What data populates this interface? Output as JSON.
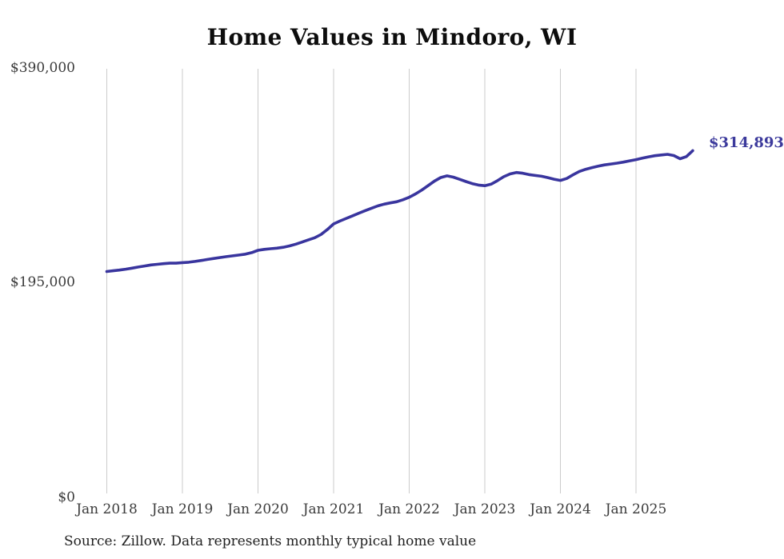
{
  "chart_data": {
    "type": "line",
    "title": "Home Values in Mindoro, WI",
    "source_note": "Source: Zillow. Data represents monthly typical home value",
    "end_label": "$314,893",
    "end_value": 314893,
    "x_tick_labels": [
      "Jan 2018",
      "Jan 2019",
      "Jan 2020",
      "Jan 2021",
      "Jan 2022",
      "Jan 2023",
      "Jan 2024",
      "Jan 2025"
    ],
    "y_tick_labels": [
      "$390,000",
      "$195,000",
      "$0"
    ],
    "y_tick_values": [
      390000,
      195000,
      0
    ],
    "ylim": [
      0,
      390000
    ],
    "x_start": "Jan 2018",
    "x_end": "Oct 2025",
    "frequency": "monthly",
    "grid": "vertical",
    "legend": "none",
    "line_color": "#39359e",
    "end_label_color": "#3c3a9c",
    "gridline_color": "#cbcbcb",
    "series": [
      {
        "name": "Typical home value",
        "values": [
          205200,
          205800,
          206500,
          207300,
          208200,
          209200,
          210200,
          211100,
          211700,
          212300,
          212700,
          212700,
          213200,
          213600,
          214300,
          215200,
          216100,
          217000,
          217900,
          218700,
          219400,
          220100,
          220900,
          222300,
          224400,
          225300,
          225900,
          226400,
          227200,
          228400,
          230000,
          231900,
          233900,
          235800,
          238800,
          243200,
          248400,
          251000,
          253400,
          255700,
          258100,
          260400,
          262600,
          264700,
          266300,
          267500,
          268500,
          270300,
          272600,
          275600,
          279200,
          283200,
          287200,
          290500,
          292000,
          290900,
          288900,
          286900,
          285000,
          283700,
          283100,
          284500,
          287700,
          291200,
          293800,
          295100,
          294400,
          293200,
          292400,
          291700,
          290400,
          289000,
          287900,
          289600,
          293000,
          296000,
          298000,
          299500,
          300800,
          302000,
          302800,
          303600,
          304500,
          305700,
          306800,
          308100,
          309300,
          310300,
          311000,
          311600,
          310500,
          307600,
          309500,
          314893
        ]
      }
    ]
  }
}
